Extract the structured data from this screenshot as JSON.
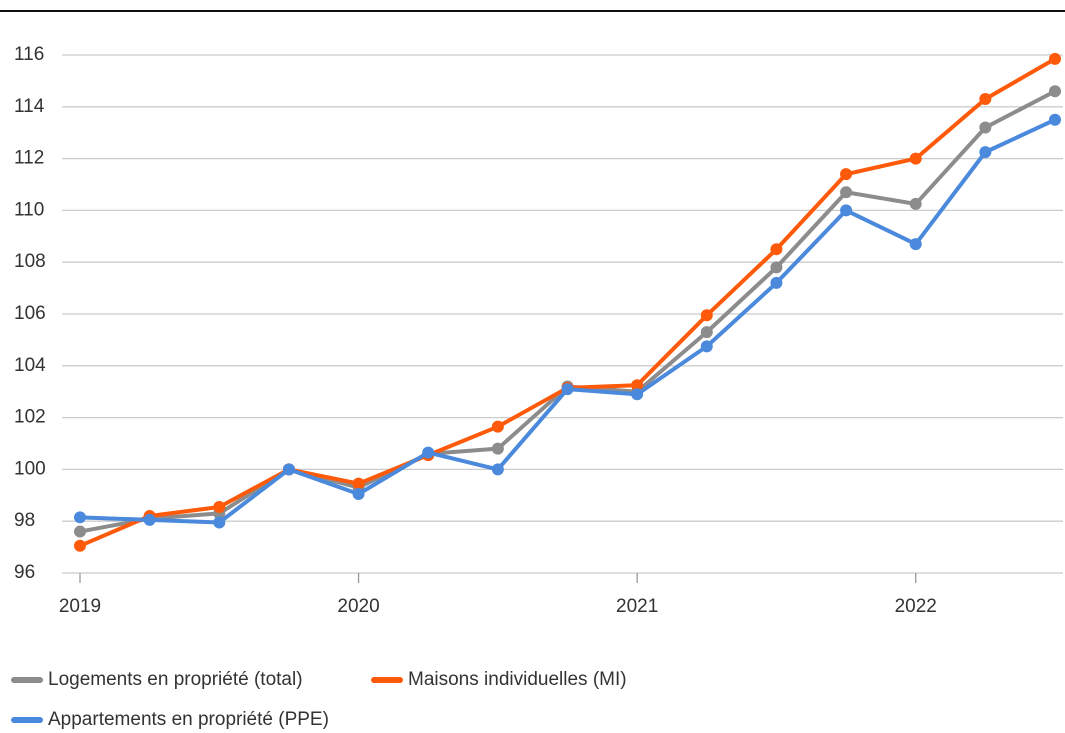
{
  "chart_data": {
    "type": "line",
    "x": [
      2019,
      2019.25,
      2019.5,
      2019.75,
      2020,
      2020.25,
      2020.5,
      2020.75,
      2021,
      2021.25,
      2021.5,
      2021.75,
      2022,
      2022.25,
      2022.5
    ],
    "xlim": [
      2019,
      2022.5
    ],
    "xticks": [
      2019,
      2020,
      2021,
      2022
    ],
    "ylim": [
      96,
      116
    ],
    "yticks": [
      96,
      98,
      100,
      102,
      104,
      106,
      108,
      110,
      112,
      114,
      116
    ],
    "grid": true,
    "legend": "bottom",
    "series": [
      {
        "name": "Logements en propriété (total)",
        "color": "#8c8c8c",
        "values": [
          97.6,
          98.1,
          98.3,
          100.0,
          99.3,
          100.6,
          100.8,
          103.2,
          103.0,
          105.3,
          107.8,
          110.7,
          110.25,
          113.2,
          114.6
        ]
      },
      {
        "name": "Maisons individuelles (MI)",
        "color": "#ff5a0a",
        "values": [
          97.05,
          98.2,
          98.55,
          100.0,
          99.45,
          100.55,
          101.65,
          103.15,
          103.25,
          105.95,
          108.5,
          111.4,
          112.0,
          114.3,
          115.85
        ]
      },
      {
        "name": "Appartements en propriété (PPE)",
        "color": "#4a89dc",
        "values": [
          98.15,
          98.05,
          97.95,
          100.0,
          99.05,
          100.65,
          100.0,
          103.1,
          102.9,
          104.75,
          107.2,
          110.0,
          108.7,
          112.25,
          113.5
        ]
      }
    ]
  }
}
